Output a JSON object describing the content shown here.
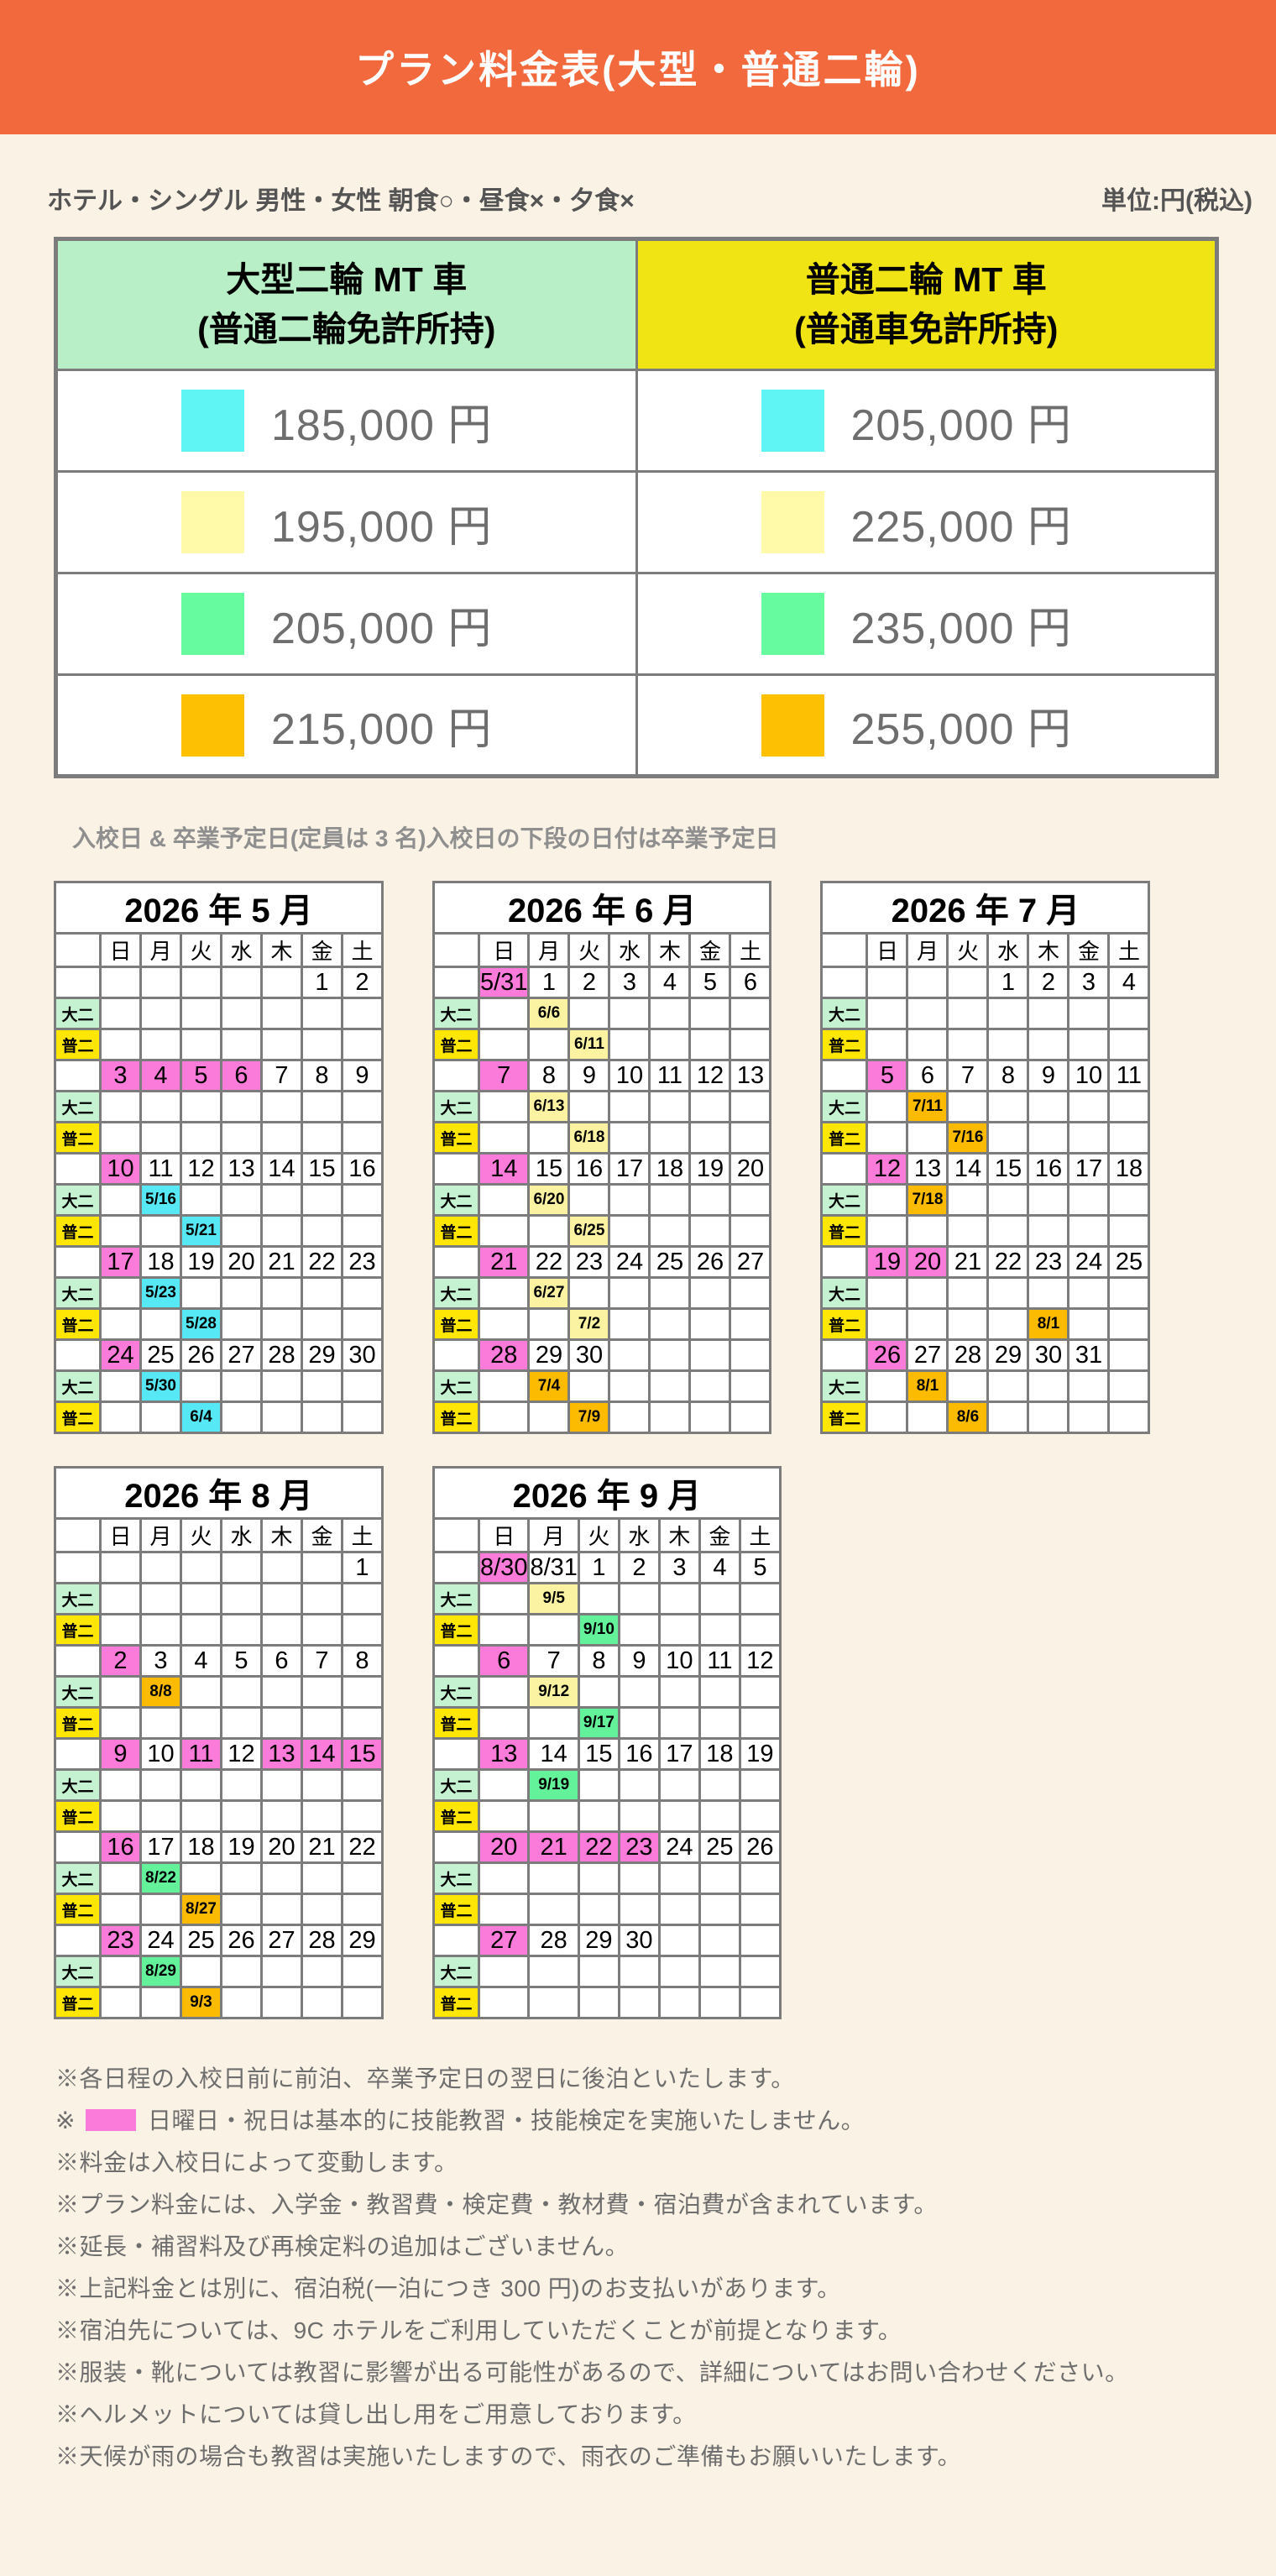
{
  "banner": {
    "title": "プラン料金表(大型・普通二輪)"
  },
  "meta": {
    "left": "ホテル・シングル 男性・女性 朝食○・昼食×・夕食×",
    "right": "単位:円(税込)"
  },
  "price_table": {
    "columns": [
      {
        "line1": "大型二輪 MT 車",
        "line2": "(普通二輪免許所持)"
      },
      {
        "line1": "普通二輪 MT 車",
        "line2": "(普通車免許所持)"
      }
    ],
    "rows": [
      {
        "color": "#5FF5F5",
        "left": "185,000 円",
        "right": "205,000 円"
      },
      {
        "color": "#FEFAA9",
        "left": "195,000 円",
        "right": "225,000 円"
      },
      {
        "color": "#66FB9E",
        "left": "205,000 円",
        "right": "235,000 円"
      },
      {
        "color": "#FDC002",
        "left": "215,000 円",
        "right": "255,000 円"
      }
    ]
  },
  "calendar_note": "入校日 & 卒業予定日(定員は 3 名)入校日の下段の日付は卒業予定日",
  "day_headers": [
    "日",
    "月",
    "火",
    "水",
    "木",
    "金",
    "土"
  ],
  "row_labels": {
    "dai": "大二",
    "fu": "普二"
  },
  "calendars": [
    {
      "id": "2026-05",
      "title": "2026 年 5 月",
      "weeks": [
        {
          "d": [
            "",
            "",
            "",
            "",
            "",
            "1",
            "2"
          ],
          "dai": [
            "",
            "",
            "",
            "",
            "",
            "",
            ""
          ],
          "fu": [
            "",
            "",
            "",
            "",
            "",
            "",
            ""
          ]
        },
        {
          "d": [
            "3|p",
            "4|p",
            "5|p",
            "6|p",
            "7",
            "8",
            "9"
          ],
          "dai": [
            "",
            "",
            "",
            "",
            "",
            "",
            ""
          ],
          "fu": [
            "",
            "",
            "",
            "",
            "",
            "",
            ""
          ]
        },
        {
          "d": [
            "10|p",
            "11",
            "12",
            "13",
            "14",
            "15",
            "16"
          ],
          "dai": [
            "",
            "5/16|c",
            "",
            "",
            "",
            "",
            ""
          ],
          "fu": [
            "",
            "",
            "5/21|c",
            "",
            "",
            "",
            ""
          ]
        },
        {
          "d": [
            "17|p",
            "18",
            "19",
            "20",
            "21",
            "22",
            "23"
          ],
          "dai": [
            "",
            "5/23|c",
            "",
            "",
            "",
            "",
            ""
          ],
          "fu": [
            "",
            "",
            "5/28|c",
            "",
            "",
            "",
            ""
          ]
        },
        {
          "d": [
            "24|p",
            "25",
            "26",
            "27",
            "28",
            "29",
            "30"
          ],
          "dai": [
            "",
            "5/30|c",
            "",
            "",
            "",
            "",
            ""
          ],
          "fu": [
            "",
            "",
            "6/4|c",
            "",
            "",
            "",
            ""
          ]
        }
      ]
    },
    {
      "id": "2026-06",
      "title": "2026 年 6 月",
      "weeks": [
        {
          "d": [
            "5/31|p",
            "1",
            "2",
            "3",
            "4",
            "5",
            "6"
          ],
          "dai": [
            "",
            "6/6|y",
            "",
            "",
            "",
            "",
            ""
          ],
          "fu": [
            "",
            "",
            "6/11|y",
            "",
            "",
            "",
            ""
          ]
        },
        {
          "d": [
            "7|p",
            "8",
            "9",
            "10",
            "11",
            "12",
            "13"
          ],
          "dai": [
            "",
            "6/13|y",
            "",
            "",
            "",
            "",
            ""
          ],
          "fu": [
            "",
            "",
            "6/18|y",
            "",
            "",
            "",
            ""
          ]
        },
        {
          "d": [
            "14|p",
            "15",
            "16",
            "17",
            "18",
            "19",
            "20"
          ],
          "dai": [
            "",
            "6/20|y",
            "",
            "",
            "",
            "",
            ""
          ],
          "fu": [
            "",
            "",
            "6/25|y",
            "",
            "",
            "",
            ""
          ]
        },
        {
          "d": [
            "21|p",
            "22",
            "23",
            "24",
            "25",
            "26",
            "27"
          ],
          "dai": [
            "",
            "6/27|y",
            "",
            "",
            "",
            "",
            ""
          ],
          "fu": [
            "",
            "",
            "7/2|y",
            "",
            "",
            "",
            ""
          ]
        },
        {
          "d": [
            "28|p",
            "29",
            "30",
            "",
            "",
            "",
            ""
          ],
          "dai": [
            "",
            "7/4|o",
            "",
            "",
            "",
            "",
            ""
          ],
          "fu": [
            "",
            "",
            "7/9|o",
            "",
            "",
            "",
            ""
          ]
        }
      ]
    },
    {
      "id": "2026-07",
      "title": "2026 年 7 月",
      "weeks": [
        {
          "d": [
            "",
            "",
            "",
            "1",
            "2",
            "3",
            "4"
          ],
          "dai": [
            "",
            "",
            "",
            "",
            "",
            "",
            ""
          ],
          "fu": [
            "",
            "",
            "",
            "",
            "",
            "",
            ""
          ]
        },
        {
          "d": [
            "5|p",
            "6",
            "7",
            "8",
            "9",
            "10",
            "11"
          ],
          "dai": [
            "",
            "7/11|o",
            "",
            "",
            "",
            "",
            ""
          ],
          "fu": [
            "",
            "",
            "7/16|o",
            "",
            "",
            "",
            ""
          ]
        },
        {
          "d": [
            "12|p",
            "13",
            "14",
            "15",
            "16",
            "17",
            "18"
          ],
          "dai": [
            "",
            "7/18|o",
            "",
            "",
            "",
            "",
            ""
          ],
          "fu": [
            "",
            "",
            "",
            "",
            "",
            "",
            ""
          ]
        },
        {
          "d": [
            "19|p",
            "20|p",
            "21",
            "22",
            "23",
            "24",
            "25"
          ],
          "dai": [
            "",
            "",
            "",
            "",
            "",
            "",
            ""
          ],
          "fu": [
            "",
            "",
            "",
            "",
            "8/1|o",
            "",
            ""
          ]
        },
        {
          "d": [
            "26|p",
            "27",
            "28",
            "29",
            "30",
            "31",
            ""
          ],
          "dai": [
            "",
            "8/1|o",
            "",
            "",
            "",
            "",
            ""
          ],
          "fu": [
            "",
            "",
            "8/6|o",
            "",
            "",
            "",
            ""
          ]
        }
      ]
    },
    {
      "id": "2026-08",
      "title": "2026 年 8 月",
      "weeks": [
        {
          "d": [
            "",
            "",
            "",
            "",
            "",
            "",
            "1"
          ],
          "dai": [
            "",
            "",
            "",
            "",
            "",
            "",
            ""
          ],
          "fu": [
            "",
            "",
            "",
            "",
            "",
            "",
            ""
          ]
        },
        {
          "d": [
            "2|p",
            "3",
            "4",
            "5",
            "6",
            "7",
            "8"
          ],
          "dai": [
            "",
            "8/8|o",
            "",
            "",
            "",
            "",
            ""
          ],
          "fu": [
            "",
            "",
            "",
            "",
            "",
            "",
            ""
          ]
        },
        {
          "d": [
            "9|p",
            "10",
            "11|p",
            "12",
            "13|p",
            "14|p",
            "15|p"
          ],
          "dai": [
            "",
            "",
            "",
            "",
            "",
            "",
            ""
          ],
          "fu": [
            "",
            "",
            "",
            "",
            "",
            "",
            ""
          ]
        },
        {
          "d": [
            "16|p",
            "17",
            "18",
            "19",
            "20",
            "21",
            "22"
          ],
          "dai": [
            "",
            "8/22|g",
            "",
            "",
            "",
            "",
            ""
          ],
          "fu": [
            "",
            "",
            "8/27|o",
            "",
            "",
            "",
            ""
          ]
        },
        {
          "d": [
            "23|p",
            "24",
            "25",
            "26",
            "27",
            "28",
            "29"
          ],
          "dai": [
            "",
            "8/29|g",
            "",
            "",
            "",
            "",
            ""
          ],
          "fu": [
            "",
            "",
            "9/3|o",
            "",
            "",
            "",
            ""
          ]
        }
      ]
    },
    {
      "id": "2026-09",
      "title": "2026 年 9 月",
      "weeks": [
        {
          "d": [
            "8/30|p",
            "8/31",
            "1",
            "2",
            "3",
            "4",
            "5"
          ],
          "dai": [
            "",
            "9/5|y",
            "",
            "",
            "",
            "",
            ""
          ],
          "fu": [
            "",
            "",
            "9/10|g",
            "",
            "",
            "",
            ""
          ]
        },
        {
          "d": [
            "6|p",
            "7",
            "8",
            "9",
            "10",
            "11",
            "12"
          ],
          "dai": [
            "",
            "9/12|y",
            "",
            "",
            "",
            "",
            ""
          ],
          "fu": [
            "",
            "",
            "9/17|g",
            "",
            "",
            "",
            ""
          ]
        },
        {
          "d": [
            "13|p",
            "14",
            "15",
            "16",
            "17",
            "18",
            "19"
          ],
          "dai": [
            "",
            "9/19|g",
            "",
            "",
            "",
            "",
            ""
          ],
          "fu": [
            "",
            "",
            "",
            "",
            "",
            "",
            ""
          ]
        },
        {
          "d": [
            "20|p",
            "21|p",
            "22|p",
            "23|p",
            "24",
            "25",
            "26"
          ],
          "dai": [
            "",
            "",
            "",
            "",
            "",
            "",
            ""
          ],
          "fu": [
            "",
            "",
            "",
            "",
            "",
            "",
            ""
          ]
        },
        {
          "d": [
            "27|p",
            "28",
            "29",
            "30",
            "",
            "",
            ""
          ],
          "dai": [
            "",
            "",
            "",
            "",
            "",
            "",
            ""
          ],
          "fu": [
            "",
            "",
            "",
            "",
            "",
            "",
            ""
          ]
        }
      ]
    }
  ],
  "notes": [
    {
      "text": "※各日程の入校日前に前泊、卒業予定日の翌日に後泊といたします。"
    },
    {
      "prefix": "※",
      "swatch": "pink",
      "text": "日曜日・祝日は基本的に技能教習・技能検定を実施いたしません。"
    },
    {
      "text": "※料金は入校日によって変動します。"
    },
    {
      "text": "※プラン料金には、入学金・教習費・検定費・教材費・宿泊費が含まれています。"
    },
    {
      "text": "※延長・補習料及び再検定料の追加はございません。"
    },
    {
      "text": "※上記料金とは別に、宿泊税(一泊につき 300 円)のお支払いがあります。"
    },
    {
      "text": "※宿泊先については、9C ホテルをご利用していただくことが前提となります。"
    },
    {
      "text": "※服装・靴については教習に影響が出る可能性があるので、詳細についてはお問い合わせください。"
    },
    {
      "text": "※ヘルメットについては貸し出し用をご用意しております。"
    },
    {
      "text": "※天候が雨の場合も教習は実施いたしますので、雨衣のご準備もお願いいたします。"
    }
  ],
  "colors": {
    "banner": "#F2693D",
    "bg": "#FAF2E4",
    "border": "#7C7C7C",
    "header_green": "#B9EFC6",
    "header_yellow": "#F0E414",
    "pink": "#FA7BD9",
    "cyan": "#57E8F6",
    "yellow": "#FBF3A2",
    "green": "#63F29A",
    "orange": "#FCBB00",
    "dai_label": "#C5F2D1",
    "fu_label": "#FFE605",
    "price_text": "#6E6E6E",
    "meta_text": "#545454",
    "note_text": "#6E6E6E",
    "calnote_text": "#8F8F8F"
  }
}
